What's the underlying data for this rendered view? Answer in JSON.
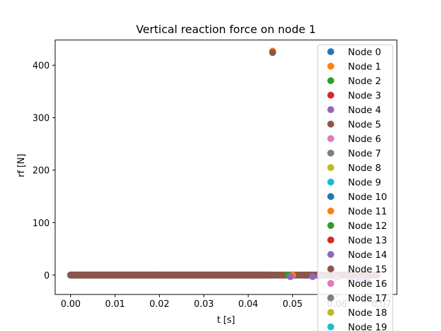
{
  "chart_data": {
    "type": "scatter",
    "title": "Vertical reaction force on node 1",
    "xlabel": "t [s]",
    "ylabel": "rf [N]",
    "xlim": [
      -0.0035,
      0.0735
    ],
    "ylim": [
      -37,
      448
    ],
    "xticks": [
      0.0,
      0.01,
      0.02,
      0.03,
      0.04,
      0.05,
      0.06,
      0.07
    ],
    "xtick_labels": [
      "0.00",
      "0.01",
      "0.02",
      "0.03",
      "0.04",
      "0.05",
      "0.06",
      "0.07"
    ],
    "yticks": [
      0,
      100,
      200,
      300,
      400
    ],
    "ytick_labels": [
      "0",
      "100",
      "200",
      "300",
      "400"
    ],
    "grid": false,
    "legend": "top-right",
    "series": [
      {
        "name": "Node 0",
        "color": "#1f77b4",
        "x": [
          0.0,
          0.02,
          0.04,
          0.05
        ],
        "y": [
          0,
          0,
          0,
          0
        ]
      },
      {
        "name": "Node 1",
        "color": "#ff7f0e",
        "x": [
          0.0,
          0.02,
          0.04,
          0.0455,
          0.05
        ],
        "y": [
          0,
          0,
          0,
          427,
          0
        ]
      },
      {
        "name": "Node 2",
        "color": "#2ca02c",
        "x": [
          0.0,
          0.02,
          0.04,
          0.049
        ],
        "y": [
          0,
          0,
          0,
          0
        ]
      },
      {
        "name": "Node 3",
        "color": "#d62728",
        "x": [
          0.0,
          0.02,
          0.04
        ],
        "y": [
          0,
          0,
          0
        ]
      },
      {
        "name": "Node 4",
        "color": "#9467bd",
        "x": [
          0.0,
          0.02,
          0.04,
          0.0495,
          0.0545,
          0.056,
          0.06,
          0.065,
          0.067
        ],
        "y": [
          0,
          0,
          0,
          -3,
          -3,
          -2,
          -4,
          -8,
          -12
        ]
      },
      {
        "name": "Node 5",
        "color": "#8c564b",
        "x": [
          0.0,
          0.02,
          0.04,
          0.0455
        ],
        "y": [
          0,
          0,
          0,
          424
        ]
      },
      {
        "name": "Node 6",
        "color": "#e377c2",
        "x": [
          0.0,
          0.02,
          0.04
        ],
        "y": [
          0,
          0,
          0
        ]
      },
      {
        "name": "Node 7",
        "color": "#7f7f7f",
        "x": [
          0.0,
          0.02,
          0.04
        ],
        "y": [
          0,
          0,
          0
        ]
      },
      {
        "name": "Node 8",
        "color": "#bcbd22",
        "x": [
          0.0,
          0.02,
          0.04
        ],
        "y": [
          0,
          0,
          0
        ]
      },
      {
        "name": "Node 9",
        "color": "#17becf",
        "x": [
          0.0,
          0.02,
          0.04
        ],
        "y": [
          0,
          0,
          0
        ]
      },
      {
        "name": "Node 10",
        "color": "#1f77b4",
        "x": [
          0.0,
          0.02,
          0.04
        ],
        "y": [
          0,
          0,
          0
        ]
      },
      {
        "name": "Node 11",
        "color": "#ff7f0e",
        "x": [
          0.0,
          0.02,
          0.04
        ],
        "y": [
          0,
          0,
          0
        ]
      },
      {
        "name": "Node 12",
        "color": "#2ca02c",
        "x": [
          0.0,
          0.02,
          0.04
        ],
        "y": [
          0,
          0,
          0
        ]
      },
      {
        "name": "Node 13",
        "color": "#d62728",
        "x": [
          0.0,
          0.02,
          0.04
        ],
        "y": [
          0,
          0,
          0
        ]
      },
      {
        "name": "Node 14",
        "color": "#9467bd",
        "x": [
          0.0,
          0.02,
          0.04,
          0.063,
          0.066
        ],
        "y": [
          0,
          0,
          0,
          -6,
          -10
        ]
      },
      {
        "name": "Node 15",
        "color": "#8c564b",
        "x": [
          0.0,
          0.01,
          0.02,
          0.03,
          0.04,
          0.045,
          0.053,
          0.058,
          0.063,
          0.068
        ],
        "y": [
          0,
          0,
          0,
          0,
          0,
          0,
          0,
          0,
          0,
          0
        ]
      },
      {
        "name": "Node 16",
        "color": "#e377c2",
        "x": [
          0.0,
          0.02,
          0.04
        ],
        "y": [
          0,
          0,
          0
        ]
      },
      {
        "name": "Node 17",
        "color": "#7f7f7f",
        "x": [
          0.0,
          0.02,
          0.04
        ],
        "y": [
          0,
          0,
          0
        ]
      },
      {
        "name": "Node 18",
        "color": "#bcbd22",
        "x": [
          0.0,
          0.02,
          0.04
        ],
        "y": [
          0,
          0,
          0
        ]
      },
      {
        "name": "Node 19",
        "color": "#17becf",
        "x": [
          0.0,
          0.02,
          0.04
        ],
        "y": [
          0,
          0,
          0
        ]
      }
    ],
    "baseline_band": {
      "x_start": 0.0,
      "x_end": 0.069,
      "y": 0,
      "color": "#8c564b"
    }
  }
}
